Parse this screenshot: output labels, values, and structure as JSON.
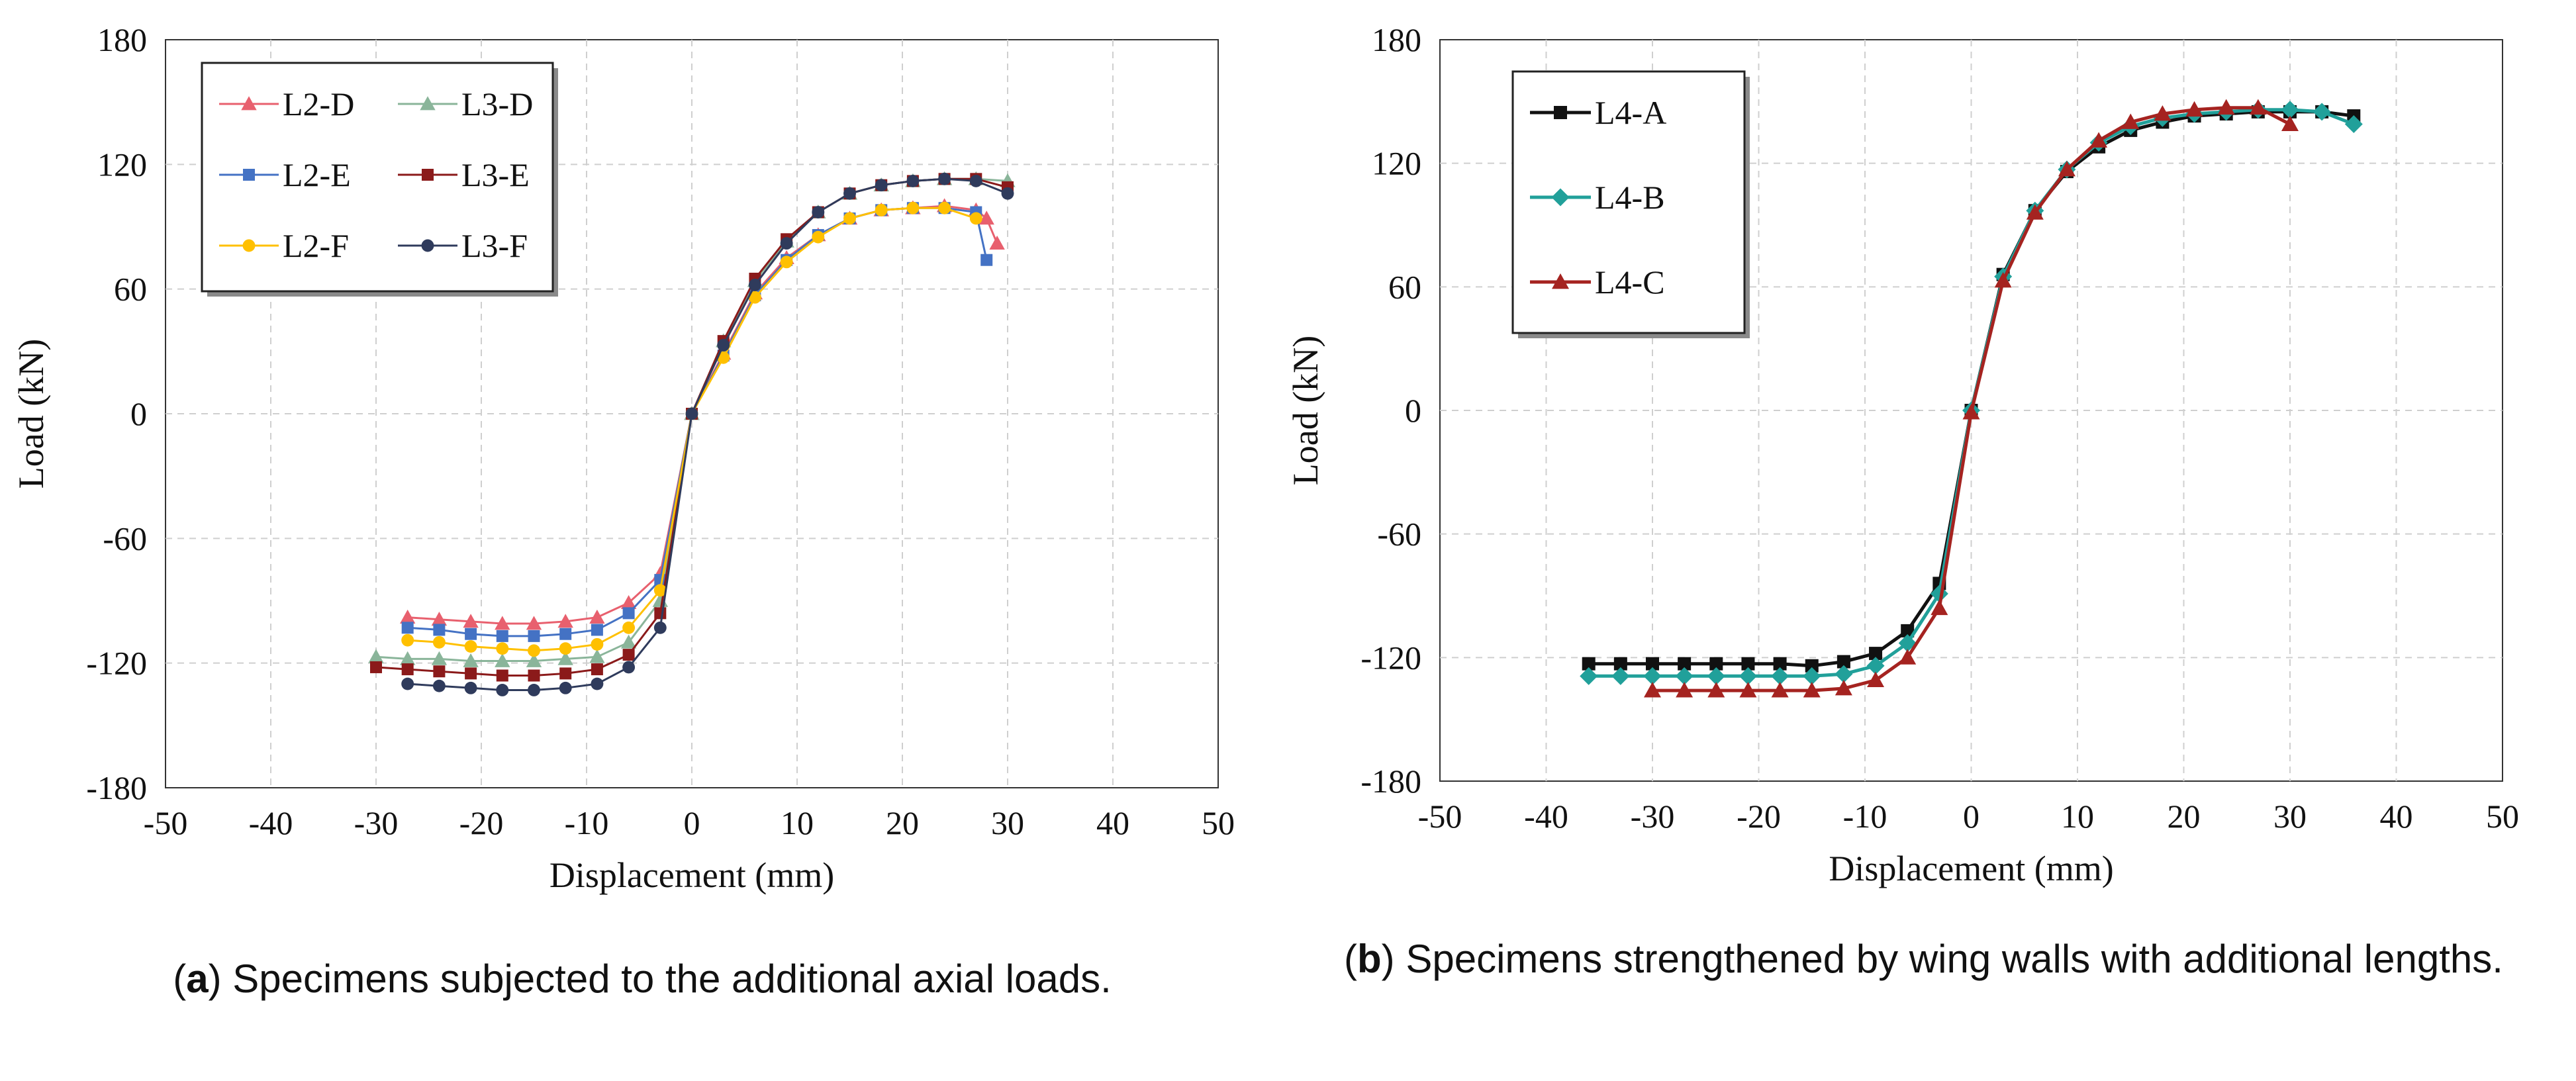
{
  "chart_data": [
    {
      "type": "line",
      "id": "a",
      "xlabel": "Displacement (mm)",
      "ylabel": "Load (kN)",
      "xlim": [
        -50,
        50
      ],
      "ylim": [
        -180,
        180
      ],
      "xticks": [
        -50,
        -40,
        -30,
        -20,
        -10,
        0,
        10,
        20,
        30,
        40,
        50
      ],
      "yticks": [
        -180,
        -120,
        -60,
        0,
        60,
        120,
        180
      ],
      "grid": true,
      "legend_position": "top-left",
      "legend_columns": 2,
      "series": [
        {
          "name": "L2-D",
          "color": "#e8606e",
          "marker": "triangle",
          "x": [
            -27,
            -24,
            -21,
            -18,
            -15,
            -12,
            -9,
            -6,
            -3,
            0,
            3,
            6,
            9,
            12,
            15,
            18,
            21,
            24,
            27,
            28,
            29
          ],
          "y": [
            -98,
            -99,
            -100,
            -101,
            -101,
            -100,
            -98,
            -91,
            -77,
            0,
            29,
            58,
            75,
            86,
            94,
            98,
            99,
            100,
            98,
            94,
            82
          ]
        },
        {
          "name": "L3-D",
          "color": "#8ab59a",
          "marker": "triangle",
          "x": [
            -30,
            -27,
            -24,
            -21,
            -18,
            -15,
            -12,
            -9,
            -6,
            -3,
            0,
            3,
            6,
            9,
            12,
            15,
            18,
            21,
            24,
            27,
            30
          ],
          "y": [
            -117,
            -118,
            -118,
            -119,
            -119,
            -119,
            -118,
            -117,
            -110,
            -90,
            0,
            35,
            64,
            83,
            97,
            106,
            110,
            112,
            113,
            113,
            112
          ]
        },
        {
          "name": "L2-E",
          "color": "#4472c4",
          "marker": "square",
          "x": [
            -27,
            -24,
            -21,
            -18,
            -15,
            -12,
            -9,
            -6,
            -3,
            0,
            3,
            6,
            9,
            12,
            15,
            18,
            21,
            24,
            27,
            28
          ],
          "y": [
            -103,
            -104,
            -106,
            -107,
            -107,
            -106,
            -104,
            -96,
            -80,
            0,
            28,
            57,
            74,
            86,
            94,
            98,
            99,
            99,
            97,
            74
          ]
        },
        {
          "name": "L3-E",
          "color": "#8b1a1a",
          "marker": "square",
          "x": [
            -30,
            -27,
            -24,
            -21,
            -18,
            -15,
            -12,
            -9,
            -6,
            -3,
            0,
            3,
            6,
            9,
            12,
            15,
            18,
            21,
            24,
            27,
            30
          ],
          "y": [
            -122,
            -123,
            -124,
            -125,
            -126,
            -126,
            -125,
            -123,
            -116,
            -96,
            0,
            35,
            65,
            84,
            97,
            106,
            110,
            112,
            113,
            113,
            109
          ]
        },
        {
          "name": "L2-F",
          "color": "#ffc000",
          "marker": "circle",
          "x": [
            -27,
            -24,
            -21,
            -18,
            -15,
            -12,
            -9,
            -6,
            -3,
            0,
            3,
            6,
            9,
            12,
            15,
            18,
            21,
            24,
            27
          ],
          "y": [
            -109,
            -110,
            -112,
            -113,
            -114,
            -113,
            -111,
            -103,
            -85,
            0,
            27,
            56,
            73,
            85,
            94,
            98,
            99,
            99,
            94
          ]
        },
        {
          "name": "L3-F",
          "color": "#2f3b5c",
          "marker": "circle",
          "x": [
            -27,
            -24,
            -21,
            -18,
            -15,
            -12,
            -9,
            -6,
            -3,
            0,
            3,
            6,
            9,
            12,
            15,
            18,
            21,
            24,
            27,
            30
          ],
          "y": [
            -130,
            -131,
            -132,
            -133,
            -133,
            -132,
            -130,
            -122,
            -103,
            0,
            33,
            62,
            82,
            97,
            106,
            110,
            112,
            113,
            112,
            106
          ]
        }
      ],
      "caption_label": "a",
      "caption_text": "Specimens subjected to the additional axial loads."
    },
    {
      "type": "line",
      "id": "b",
      "xlabel": "Displacement (mm)",
      "ylabel": "Load (kN)",
      "xlim": [
        -50,
        50
      ],
      "ylim": [
        -180,
        180
      ],
      "xticks": [
        -50,
        -40,
        -30,
        -20,
        -10,
        0,
        10,
        20,
        30,
        40,
        50
      ],
      "yticks": [
        -180,
        -120,
        -60,
        0,
        60,
        120,
        180
      ],
      "grid": true,
      "legend_position": "top-left",
      "legend_columns": 1,
      "series": [
        {
          "name": "L4-A",
          "color": "#111111",
          "marker": "square",
          "x": [
            -36,
            -33,
            -30,
            -27,
            -24,
            -21,
            -18,
            -15,
            -12,
            -9,
            -6,
            -3,
            0,
            3,
            6,
            9,
            12,
            15,
            18,
            21,
            24,
            27,
            30,
            33,
            36
          ],
          "y": [
            -123,
            -123,
            -123,
            -123,
            -123,
            -123,
            -123,
            -124,
            -122,
            -118,
            -107,
            -84,
            0,
            66,
            97,
            116,
            128,
            136,
            140,
            143,
            144,
            145,
            145,
            145,
            143
          ]
        },
        {
          "name": "L4-B",
          "color": "#21a09a",
          "marker": "diamond",
          "x": [
            -36,
            -33,
            -30,
            -27,
            -24,
            -21,
            -18,
            -15,
            -12,
            -9,
            -6,
            -3,
            0,
            3,
            6,
            9,
            12,
            15,
            18,
            21,
            24,
            27,
            30,
            33,
            36
          ],
          "y": [
            -129,
            -129,
            -129,
            -129,
            -129,
            -129,
            -129,
            -129,
            -128,
            -124,
            -113,
            -89,
            0,
            65,
            97,
            117,
            130,
            138,
            142,
            144,
            145,
            146,
            146,
            145,
            139
          ]
        },
        {
          "name": "L4-C",
          "color": "#a52320",
          "marker": "triangle",
          "x": [
            -30,
            -27,
            -24,
            -21,
            -18,
            -15,
            -12,
            -9,
            -6,
            -3,
            0,
            3,
            6,
            9,
            12,
            15,
            18,
            21,
            24,
            27,
            30
          ],
          "y": [
            -136,
            -136,
            -136,
            -136,
            -136,
            -136,
            -135,
            -131,
            -120,
            -96,
            -1,
            63,
            96,
            117,
            131,
            140,
            144,
            146,
            147,
            147,
            139
          ]
        }
      ],
      "caption_label": "b",
      "caption_text": "Specimens strengthened by wing walls with additional lengths."
    }
  ]
}
